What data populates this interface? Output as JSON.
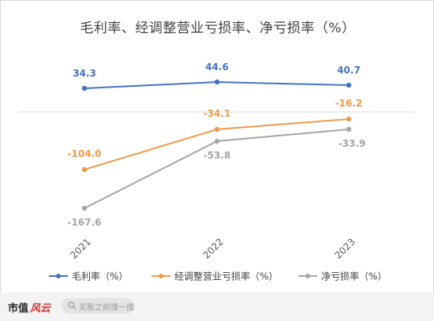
{
  "chart_data": {
    "type": "line",
    "title": "毛利率、经调整营业亏损率、净亏损率（%）",
    "categories": [
      "2021",
      "2022",
      "2023"
    ],
    "series": [
      {
        "name": "毛利率（%）",
        "values": [
          34.3,
          44.6,
          40.7
        ],
        "labels": [
          "34.3",
          "44.6",
          "40.7"
        ],
        "color": "#4472c4"
      },
      {
        "name": "经调整营业亏损率（%）",
        "values": [
          -104.0,
          -34.1,
          -16.2
        ],
        "labels": [
          "-104.0",
          "-34.1",
          "-16.2"
        ],
        "color": "#ed9a4e"
      },
      {
        "name": "净亏损率（%）",
        "values": [
          -167.6,
          -53.8,
          -33.9
        ],
        "labels": [
          "-167.6",
          "-53.8",
          "-33.9"
        ],
        "color": "#a5a5a5"
      }
    ],
    "legend_position": "bottom",
    "grid": false
  },
  "footer": {
    "brand": "市值",
    "brand_mark": "风云",
    "search_placeholder": "买股之前搜一搜",
    "search_icon": "search-icon"
  }
}
